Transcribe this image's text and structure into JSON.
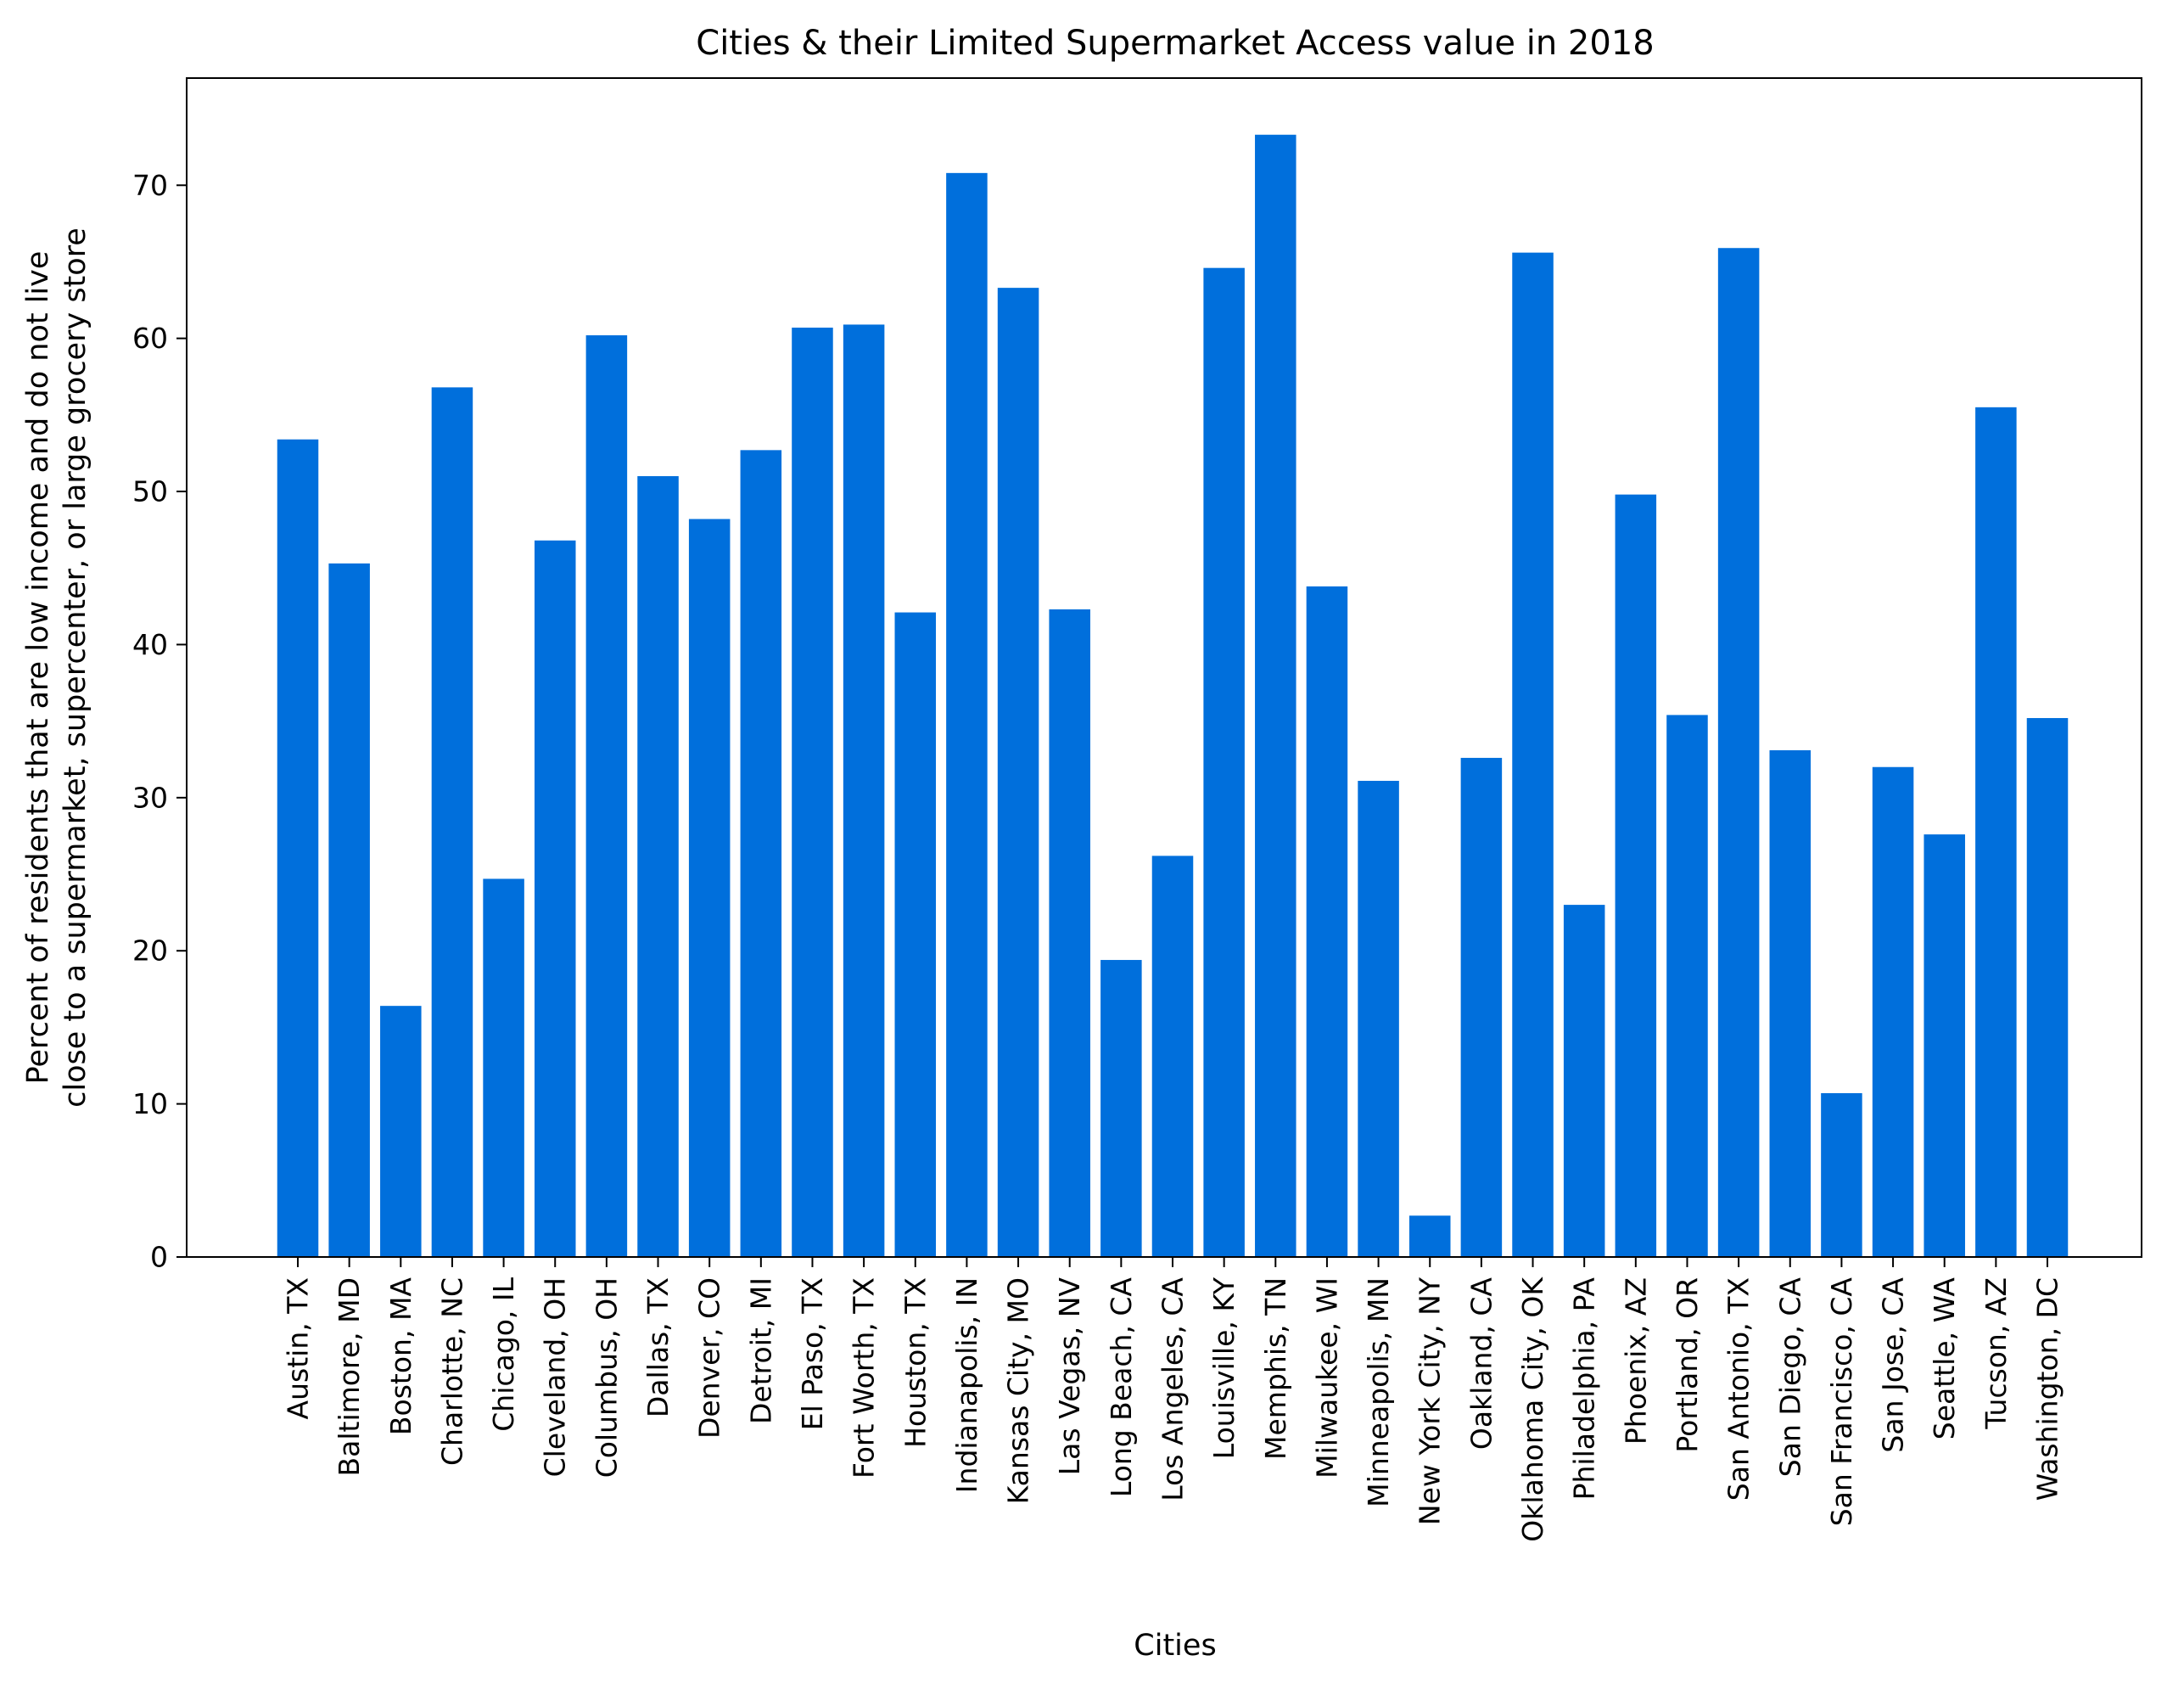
{
  "chart_data": {
    "type": "bar",
    "title": "Cities & their Limited Supermarket Access value in 2018",
    "xlabel": "Cities",
    "ylabel_lines": [
      "Percent of residents that are low income and do not live",
      "close to a supermarket, supercenter, or large grocery store"
    ],
    "ylim": [
      0,
      77
    ],
    "yticks": [
      0,
      10,
      20,
      30,
      40,
      50,
      60,
      70
    ],
    "grid": false,
    "bar_color": "#006fdc",
    "categories": [
      "Austin, TX",
      "Baltimore, MD",
      "Boston, MA",
      "Charlotte, NC",
      "Chicago, IL",
      "Cleveland, OH",
      "Columbus, OH",
      "Dallas, TX",
      "Denver, CO",
      "Detroit, MI",
      "El Paso, TX",
      "Fort Worth, TX",
      "Houston, TX",
      "Indianapolis, IN",
      "Kansas City, MO",
      "Las Vegas, NV",
      "Long Beach, CA",
      "Los Angeles, CA",
      "Louisville, KY",
      "Memphis, TN",
      "Milwaukee, WI",
      "Minneapolis, MN",
      "New York City, NY",
      "Oakland, CA",
      "Oklahoma City, OK",
      "Philadelphia, PA",
      "Phoenix, AZ",
      "Portland, OR",
      "San Antonio, TX",
      "San Diego, CA",
      "San Francisco, CA",
      "San Jose, CA",
      "Seattle, WA",
      "Tucson, AZ",
      "Washington, DC"
    ],
    "values": [
      53.4,
      45.3,
      16.4,
      56.8,
      24.7,
      46.8,
      60.2,
      51.0,
      48.2,
      52.7,
      60.7,
      60.9,
      42.1,
      70.8,
      63.3,
      42.3,
      19.4,
      26.2,
      64.6,
      73.3,
      43.8,
      31.1,
      2.7,
      32.6,
      65.6,
      23.0,
      49.8,
      35.4,
      65.9,
      33.1,
      10.7,
      32.0,
      27.6,
      55.5,
      35.2
    ]
  }
}
